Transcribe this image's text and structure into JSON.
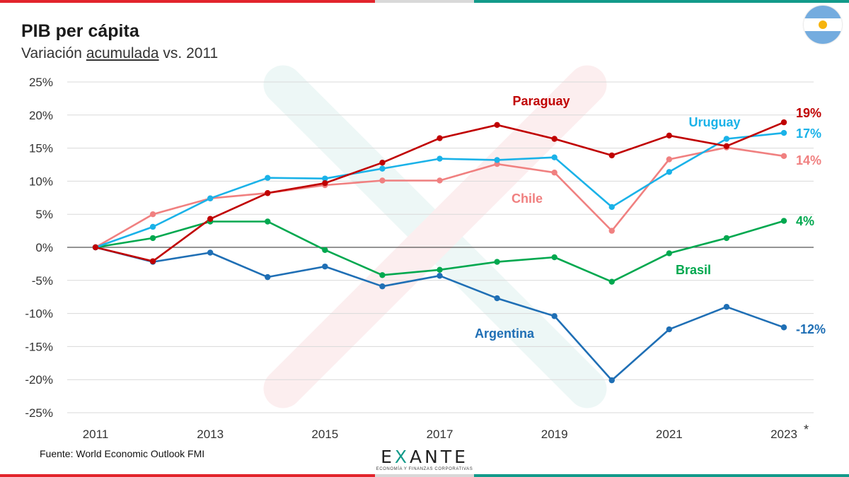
{
  "title": "PIB per cápita",
  "subtitle": {
    "before": "Variación ",
    "underlined": "acumulada",
    "after": " vs. 2011"
  },
  "source": "Fuente: World Economic Outlook FMI",
  "logo": {
    "word_a": "E",
    "word_x": "X",
    "word_b": "ANTE",
    "tagline": "ECONOMÍA Y FINANZAS CORPORATIVAS"
  },
  "flag_icon": "argentina-flag-icon",
  "colors": {
    "paraguay": "#c00000",
    "uruguay": "#1ab2e8",
    "chile": "#f08080",
    "brasil": "#00a84f",
    "argentina": "#1f6fb5",
    "brand_red": "#e2242c",
    "brand_teal": "#139a8a"
  },
  "chart_data": {
    "type": "line",
    "title": "PIB per cápita",
    "subtitle": "Variación acumulada vs. 2011",
    "x": [
      2011,
      2012,
      2013,
      2014,
      2015,
      2016,
      2017,
      2018,
      2019,
      2020,
      2021,
      2022,
      2023
    ],
    "xtick_labels": [
      "2011",
      "2013",
      "2015",
      "2017",
      "2019",
      "2021",
      "2023"
    ],
    "xtick_note": "*",
    "yticks": [
      -25,
      -20,
      -15,
      -10,
      -5,
      0,
      5,
      10,
      15,
      20,
      25
    ],
    "ytick_labels": [
      "-25%",
      "-20%",
      "-15%",
      "-10%",
      "-5%",
      "0%",
      "5%",
      "10%",
      "15%",
      "20%",
      "25%"
    ],
    "ylim": [
      -25,
      25
    ],
    "grid": true,
    "series": [
      {
        "key": "paraguay",
        "name": "Paraguay",
        "values": [
          0,
          -2.1,
          4.3,
          8.2,
          9.7,
          12.8,
          16.5,
          18.5,
          16.4,
          13.9,
          16.9,
          15.3,
          18.9
        ],
        "end_label": "19%"
      },
      {
        "key": "uruguay",
        "name": "Uruguay",
        "values": [
          0,
          3.1,
          7.4,
          10.5,
          10.4,
          11.9,
          13.4,
          13.2,
          13.6,
          6.1,
          11.4,
          16.4,
          17.3
        ],
        "end_label": "17%"
      },
      {
        "key": "chile",
        "name": "Chile",
        "values": [
          0,
          5.0,
          7.4,
          8.2,
          9.4,
          10.1,
          10.1,
          12.6,
          11.3,
          2.5,
          13.3,
          15.1,
          13.8
        ],
        "end_label": "14%"
      },
      {
        "key": "brasil",
        "name": "Brasil",
        "values": [
          0,
          1.4,
          3.9,
          3.9,
          -0.4,
          -4.2,
          -3.4,
          -2.2,
          -1.5,
          -5.2,
          -0.9,
          1.4,
          4.0
        ],
        "end_label": "4%"
      },
      {
        "key": "argentina",
        "name": "Argentina",
        "values": [
          0,
          -2.2,
          -0.8,
          -4.5,
          -2.9,
          -5.9,
          -4.3,
          -7.7,
          -10.4,
          -20.1,
          -12.4,
          -9.0,
          -12.1
        ],
        "end_label": "-12%"
      }
    ]
  }
}
